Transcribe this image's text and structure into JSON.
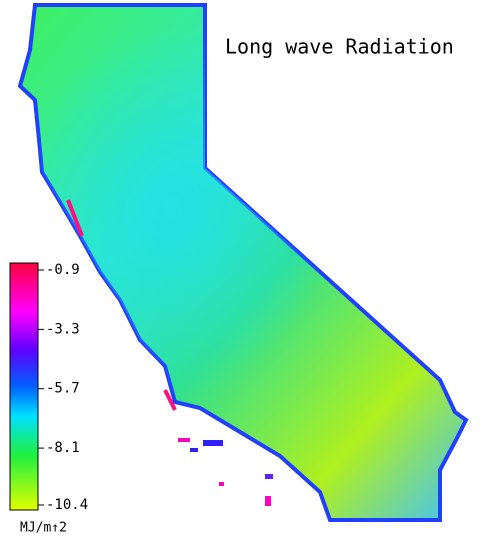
{
  "title": "Long wave Radiation",
  "colorbar": {
    "ticks": [
      -0.9,
      -3.3,
      -5.7,
      -8.1,
      -10.4
    ],
    "unit": "MJ/m↑2"
  }
}
